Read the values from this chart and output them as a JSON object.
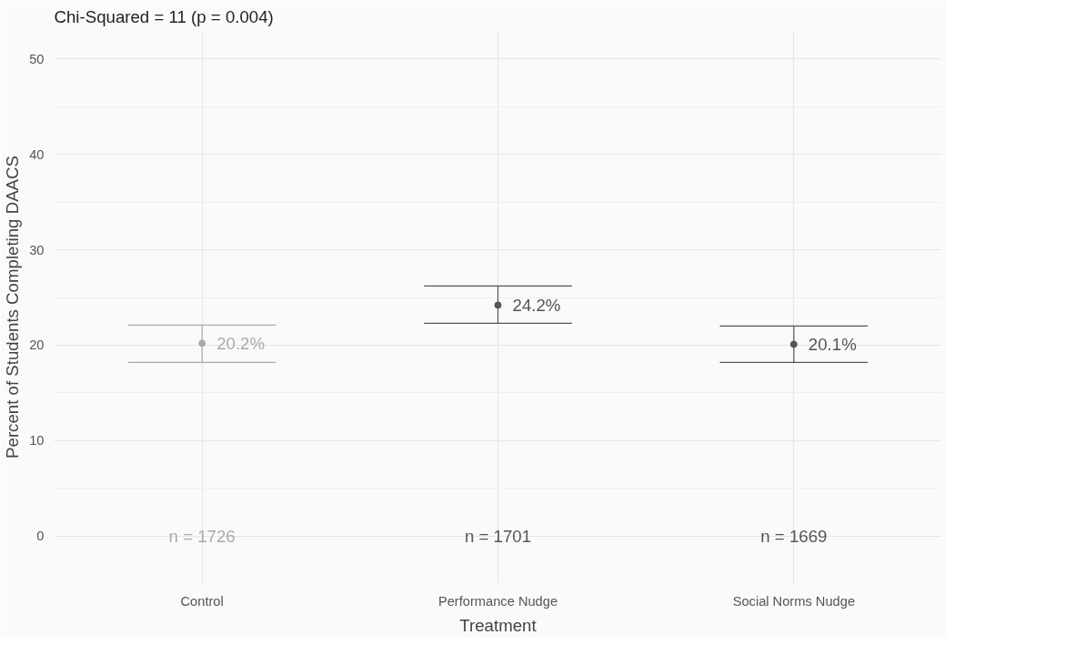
{
  "chart_data": {
    "type": "scatter",
    "title": "Chi-Squared = 11 (p = 0.004)",
    "xlabel": "Treatment",
    "ylabel": "Percent of Students Completing DAACS",
    "categories": [
      "Control",
      "Performance Nudge",
      "Social Norms Nudge"
    ],
    "values": [
      20.2,
      24.2,
      20.1
    ],
    "value_labels": [
      "20.2%",
      "24.2%",
      "20.1%"
    ],
    "errors": [
      [
        18.2,
        22.1
      ],
      [
        22.3,
        26.2
      ],
      [
        18.2,
        22.0
      ]
    ],
    "colors": [
      "#aaaaaa",
      "#555555",
      "#555555"
    ],
    "annotations": [
      "n = 1726",
      "n = 1701",
      "n = 1669"
    ],
    "ylim": [
      -5,
      53
    ],
    "yticks": [
      0,
      10,
      20,
      30,
      40,
      50
    ],
    "marker": "circle",
    "grid": true
  }
}
